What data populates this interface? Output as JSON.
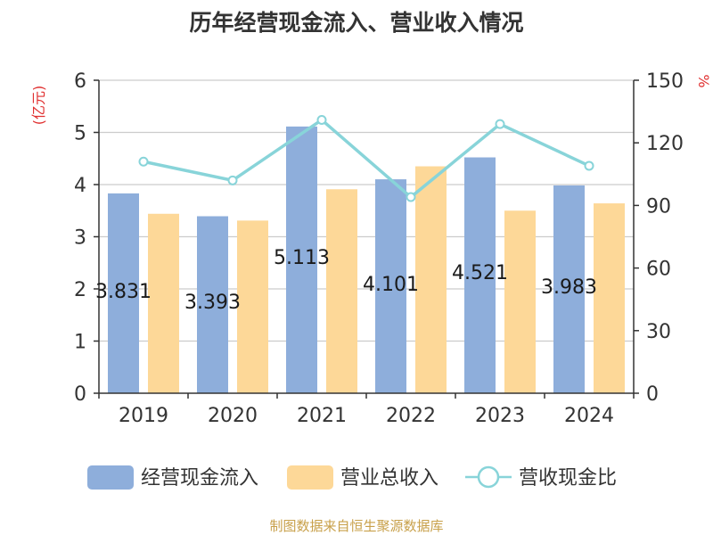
{
  "chart_data": {
    "type": "bar",
    "title": "历年经营现金流入、营业收入情况",
    "categories": [
      "2019",
      "2020",
      "2021",
      "2022",
      "2023",
      "2024"
    ],
    "series": [
      {
        "name": "经营现金流入",
        "kind": "bar",
        "axis": "left",
        "color": "#8eaedb",
        "values": [
          3.831,
          3.393,
          5.113,
          4.101,
          4.521,
          3.983
        ],
        "labels": [
          "3.831",
          "3.393",
          "5.113",
          "4.101",
          "4.521",
          "3.983"
        ]
      },
      {
        "name": "营业总收入",
        "kind": "bar",
        "axis": "left",
        "color": "#fdd898",
        "values": [
          3.44,
          3.31,
          3.91,
          4.35,
          3.5,
          3.64
        ]
      },
      {
        "name": "营收现金比",
        "kind": "line",
        "axis": "right",
        "color": "#88d4d9",
        "values": [
          111,
          102,
          131,
          94,
          129,
          109
        ]
      }
    ],
    "y_left": {
      "label": "(亿元)",
      "ylim": [
        0,
        6
      ],
      "ticks": [
        "0",
        "1",
        "2",
        "3",
        "4",
        "5",
        "6"
      ]
    },
    "y_right": {
      "label": "%",
      "ylim": [
        0,
        150
      ],
      "ticks": [
        "0",
        "30",
        "60",
        "90",
        "120",
        "150"
      ]
    },
    "grid": true,
    "legend_position": "bottom"
  },
  "footer": {
    "source": "制图数据来自恒生聚源数据库"
  }
}
